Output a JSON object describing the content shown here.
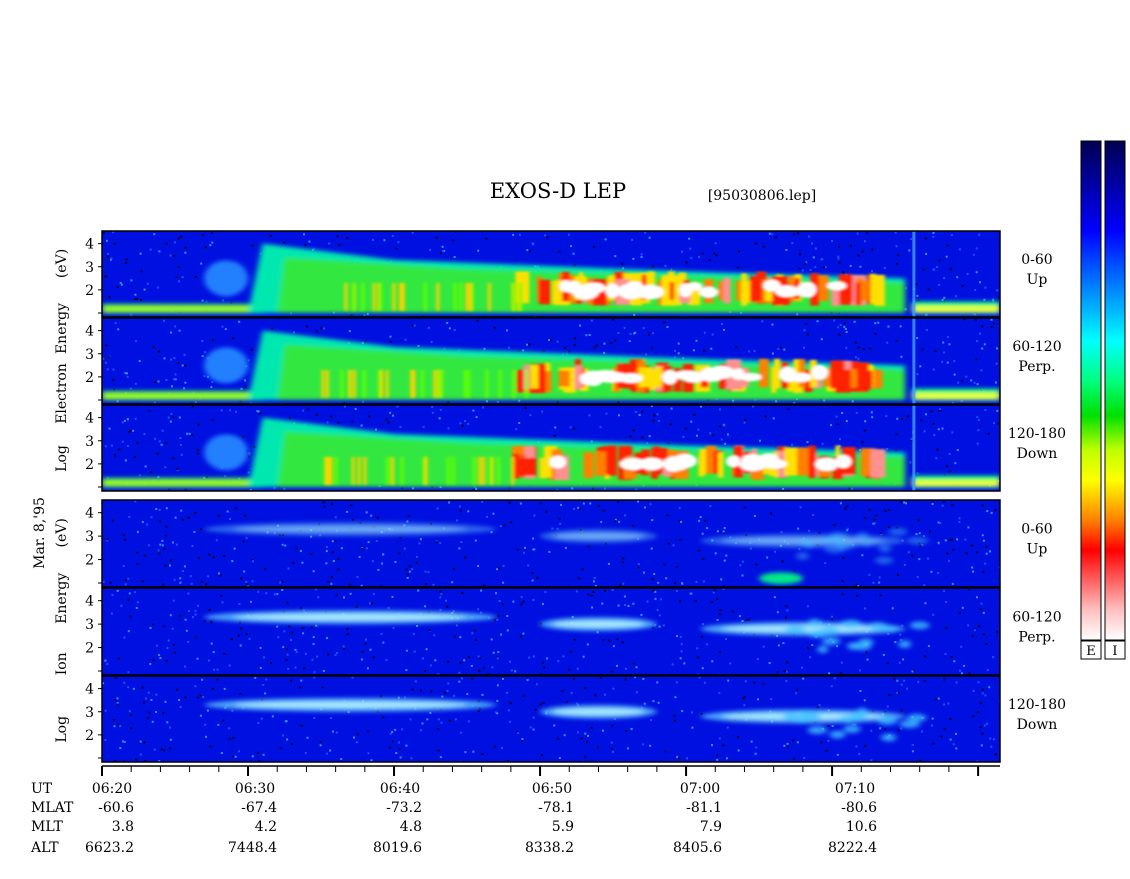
{
  "title": "EXOS-D LEP",
  "filename": "[95030806.lep]",
  "date_label": "Mar. 8,'95",
  "panel_groups": [
    {
      "id": "electron",
      "words": [
        "Log",
        "Electron",
        "Energy",
        "(eV)"
      ]
    },
    {
      "id": "ion",
      "words": [
        "Log",
        "Ion",
        "Energy",
        "(eV)"
      ]
    }
  ],
  "channels": [
    {
      "group": "electron",
      "range": "0-60",
      "dir": "Up"
    },
    {
      "group": "electron",
      "range": "60-120",
      "dir": "Perp."
    },
    {
      "group": "electron",
      "range": "120-180",
      "dir": "Down"
    },
    {
      "group": "ion",
      "range": "0-60",
      "dir": "Up"
    },
    {
      "group": "ion",
      "range": "60-120",
      "dir": "Perp."
    },
    {
      "group": "ion",
      "range": "120-180",
      "dir": "Down"
    }
  ],
  "colorbars": [
    {
      "label": "E"
    },
    {
      "label": "I"
    }
  ],
  "colors": {
    "background": "#0000c8",
    "low": "#0008ff",
    "high": "#ffffff"
  },
  "footer_rows": [
    "UT",
    "MLAT",
    "MLT",
    "ALT"
  ],
  "footer_values": [
    {
      "UT": "06:20",
      "MLAT": "-60.6",
      "MLT": "3.8",
      "ALT": "6623.2"
    },
    {
      "UT": "06:30",
      "MLAT": "-67.4",
      "MLT": "4.2",
      "ALT": "7448.4"
    },
    {
      "UT": "06:40",
      "MLAT": "-73.2",
      "MLT": "4.8",
      "ALT": "8019.6"
    },
    {
      "UT": "06:50",
      "MLAT": "-78.1",
      "MLT": "5.9",
      "ALT": "8338.2"
    },
    {
      "UT": "07:00",
      "MLAT": "-81.1",
      "MLT": "7.9",
      "ALT": "8405.6"
    },
    {
      "UT": "07:10",
      "MLAT": "-80.6",
      "MLT": "10.6",
      "ALT": "8222.4"
    }
  ],
  "chart_data": {
    "type": "heatmap",
    "title": "EXOS-D LEP",
    "x_label": "UT",
    "x_range_minutes_after_0620": [
      0,
      61.5
    ],
    "y_label_electron": "Log Electron Energy (eV)",
    "y_label_ion": "Log Ion Energy (eV)",
    "y_ticks": [
      1,
      2,
      3,
      4
    ],
    "y_range": [
      1,
      4.2
    ],
    "electron_features": [
      {
        "description": "low-energy band",
        "t_start": 0,
        "t_end": 61.5,
        "logE": 1.2
      },
      {
        "description": "inverted-V onset",
        "t": 11,
        "logE_range": [
          1.2,
          4.0
        ]
      },
      {
        "description": "intense precipitation",
        "t_start": 28,
        "t_end": 53,
        "logE_range": [
          1.5,
          2.8
        ]
      },
      {
        "description": "boundary",
        "t": 55.5
      }
    ],
    "ion_features": [
      {
        "description": "ion band",
        "t_start": 7,
        "t_end": 27,
        "logE": 3.3
      },
      {
        "description": "ion band",
        "t_start": 30,
        "t_end": 38,
        "logE": 3.0
      },
      {
        "description": "ion patches",
        "t_start": 41,
        "t_end": 55,
        "logE": 2.8
      }
    ]
  }
}
